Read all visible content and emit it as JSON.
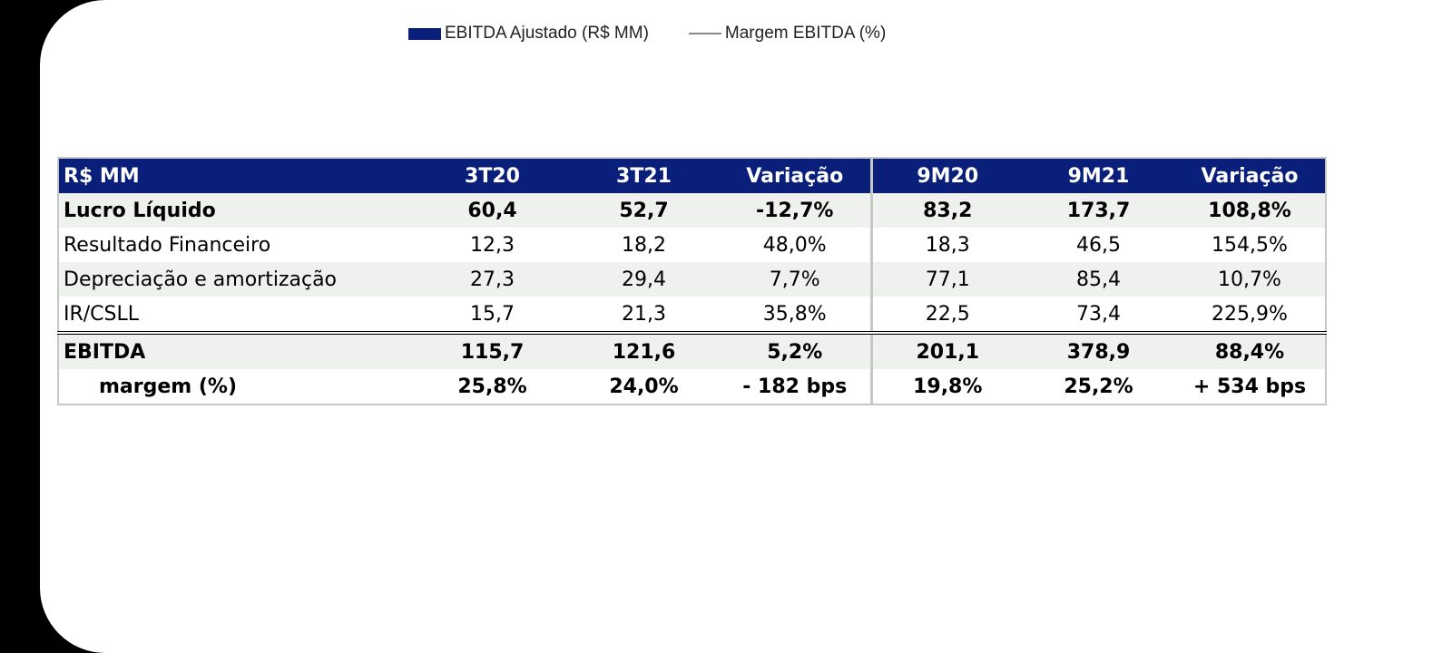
{
  "legend": {
    "bar_label": "EBITDA Ajustado (R$ MM)",
    "line_label": "Margem EBITDA (%)",
    "bar_color": "#0a1f7a",
    "line_color": "#888888"
  },
  "table": {
    "header_color": "#0a1f7a",
    "stripe_color": "#eef1ee",
    "headers": [
      "R$ MM",
      "3T20",
      "3T21",
      "Variação",
      "9M20",
      "9M21",
      "Variação"
    ],
    "rows": [
      {
        "label": "Lucro Líquido",
        "values": [
          "60,4",
          "52,7",
          "-12,7%",
          "83,2",
          "173,7",
          "108,8%"
        ]
      },
      {
        "label": "Resultado Financeiro",
        "values": [
          "12,3",
          "18,2",
          "48,0%",
          "18,3",
          "46,5",
          "154,5%"
        ]
      },
      {
        "label": "Depreciação e amortização",
        "values": [
          "27,3",
          "29,4",
          "7,7%",
          "77,1",
          "85,4",
          "10,7%"
        ]
      },
      {
        "label": "IR/CSLL",
        "values": [
          "15,7",
          "21,3",
          "35,8%",
          "22,5",
          "73,4",
          "225,9%"
        ]
      },
      {
        "label": "EBITDA",
        "values": [
          "115,7",
          "121,6",
          "5,2%",
          "201,1",
          "378,9",
          "88,4%"
        ]
      },
      {
        "label": "margem (%)",
        "values": [
          "25,8%",
          "24,0%",
          "- 182 bps",
          "19,8%",
          "25,2%",
          "+ 534 bps"
        ]
      }
    ]
  }
}
